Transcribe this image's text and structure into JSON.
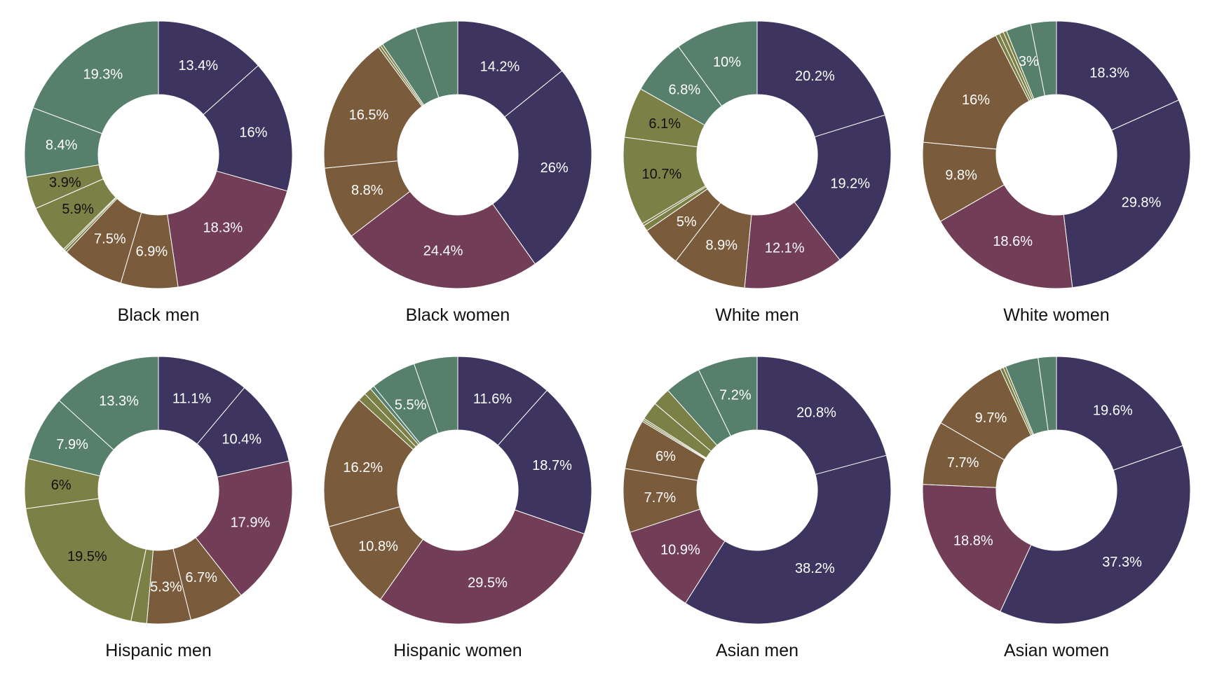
{
  "chart_data": {
    "type": "pie",
    "variant": "donut",
    "colors": {
      "purple": "#3d355f",
      "maroon": "#723d56",
      "brown": "#7a5b3c",
      "olive": "#7b8046",
      "teal": "#567f6c"
    },
    "label_colors": {
      "light": "#ffffff",
      "dark": "#111111"
    },
    "charts": [
      {
        "title": "Black men",
        "slices": [
          {
            "value": 13.4,
            "color": "purple",
            "label": "13.4%"
          },
          {
            "value": 16.0,
            "color": "purple",
            "label": "16%"
          },
          {
            "value": 18.3,
            "color": "maroon",
            "label": "18.3%"
          },
          {
            "value": 6.9,
            "color": "brown",
            "label": "6.9%"
          },
          {
            "value": 7.5,
            "color": "brown",
            "label": "7.5%"
          },
          {
            "value": 0.3,
            "color": "olive",
            "label": null
          },
          {
            "value": 0.2,
            "color": "olive",
            "label": null
          },
          {
            "value": 5.9,
            "color": "olive",
            "label": "5.9%"
          },
          {
            "value": 3.9,
            "color": "olive",
            "label": "3.9%"
          },
          {
            "value": 8.4,
            "color": "teal",
            "label": "8.4%"
          },
          {
            "value": 19.3,
            "color": "teal",
            "label": "19.3%"
          }
        ]
      },
      {
        "title": "Black women",
        "slices": [
          {
            "value": 14.2,
            "color": "purple",
            "label": "14.2%"
          },
          {
            "value": 26.0,
            "color": "purple",
            "label": "26%"
          },
          {
            "value": 24.4,
            "color": "maroon",
            "label": "24.4%"
          },
          {
            "value": 8.8,
            "color": "brown",
            "label": "8.8%"
          },
          {
            "value": 16.5,
            "color": "brown",
            "label": "16.5%"
          },
          {
            "value": 0.3,
            "color": "olive",
            "label": null
          },
          {
            "value": 0.3,
            "color": "olive",
            "label": null
          },
          {
            "value": 4.4,
            "color": "teal",
            "label": null
          },
          {
            "value": 5.1,
            "color": "teal",
            "label": null
          }
        ]
      },
      {
        "title": "White men",
        "slices": [
          {
            "value": 20.2,
            "color": "purple",
            "label": "20.2%"
          },
          {
            "value": 19.2,
            "color": "purple",
            "label": "19.2%"
          },
          {
            "value": 12.1,
            "color": "maroon",
            "label": "12.1%"
          },
          {
            "value": 8.9,
            "color": "brown",
            "label": "8.9%"
          },
          {
            "value": 5.0,
            "color": "brown",
            "label": "5%"
          },
          {
            "value": 0.7,
            "color": "olive",
            "label": null
          },
          {
            "value": 0.3,
            "color": "olive",
            "label": null
          },
          {
            "value": 10.7,
            "color": "olive",
            "label": "10.7%"
          },
          {
            "value": 6.1,
            "color": "olive",
            "label": "6.1%"
          },
          {
            "value": 6.8,
            "color": "teal",
            "label": "6.8%"
          },
          {
            "value": 10.0,
            "color": "teal",
            "label": "10%"
          }
        ]
      },
      {
        "title": "White women",
        "slices": [
          {
            "value": 18.3,
            "color": "purple",
            "label": "18.3%"
          },
          {
            "value": 29.8,
            "color": "purple",
            "label": "29.8%"
          },
          {
            "value": 18.6,
            "color": "maroon",
            "label": "18.6%"
          },
          {
            "value": 9.8,
            "color": "brown",
            "label": "9.8%"
          },
          {
            "value": 16.0,
            "color": "brown",
            "label": "16%"
          },
          {
            "value": 0.5,
            "color": "olive",
            "label": null
          },
          {
            "value": 0.5,
            "color": "olive",
            "label": null
          },
          {
            "value": 0.4,
            "color": "olive",
            "label": null
          },
          {
            "value": 3.0,
            "color": "teal",
            "label": "3%"
          },
          {
            "value": 3.1,
            "color": "teal",
            "label": null
          }
        ]
      },
      {
        "title": "Hispanic men",
        "slices": [
          {
            "value": 11.1,
            "color": "purple",
            "label": "11.1%"
          },
          {
            "value": 10.4,
            "color": "purple",
            "label": "10.4%"
          },
          {
            "value": 17.9,
            "color": "maroon",
            "label": "17.9%"
          },
          {
            "value": 6.7,
            "color": "brown",
            "label": "6.7%"
          },
          {
            "value": 5.3,
            "color": "brown",
            "label": "5.3%"
          },
          {
            "value": 1.9,
            "color": "olive",
            "label": null
          },
          {
            "value": 19.5,
            "color": "olive",
            "label": "19.5%"
          },
          {
            "value": 6.0,
            "color": "olive",
            "label": "6%"
          },
          {
            "value": 7.9,
            "color": "teal",
            "label": "7.9%"
          },
          {
            "value": 13.3,
            "color": "teal",
            "label": "13.3%"
          }
        ]
      },
      {
        "title": "Hispanic women",
        "slices": [
          {
            "value": 11.6,
            "color": "purple",
            "label": "11.6%"
          },
          {
            "value": 18.7,
            "color": "purple",
            "label": "18.7%"
          },
          {
            "value": 29.5,
            "color": "maroon",
            "label": "29.5%"
          },
          {
            "value": 10.8,
            "color": "brown",
            "label": "10.8%"
          },
          {
            "value": 16.2,
            "color": "brown",
            "label": "16.2%"
          },
          {
            "value": 1.0,
            "color": "olive",
            "label": null
          },
          {
            "value": 0.9,
            "color": "olive",
            "label": null
          },
          {
            "value": 0.5,
            "color": "teal",
            "label": null
          },
          {
            "value": 5.5,
            "color": "teal",
            "label": "5.5%"
          },
          {
            "value": 5.3,
            "color": "teal",
            "label": null
          }
        ]
      },
      {
        "title": "Asian men",
        "slices": [
          {
            "value": 20.8,
            "color": "purple",
            "label": "20.8%"
          },
          {
            "value": 38.2,
            "color": "purple",
            "label": "38.2%"
          },
          {
            "value": 10.9,
            "color": "maroon",
            "label": "10.9%"
          },
          {
            "value": 7.7,
            "color": "brown",
            "label": "7.7%"
          },
          {
            "value": 6.0,
            "color": "brown",
            "label": "6%"
          },
          {
            "value": 0.2,
            "color": "olive",
            "label": null
          },
          {
            "value": 0.2,
            "color": "olive",
            "label": null
          },
          {
            "value": 2.2,
            "color": "olive",
            "label": null
          },
          {
            "value": 2.2,
            "color": "olive",
            "label": null
          },
          {
            "value": 4.4,
            "color": "teal",
            "label": null
          },
          {
            "value": 7.2,
            "color": "teal",
            "label": "7.2%"
          }
        ]
      },
      {
        "title": "Asian women",
        "slices": [
          {
            "value": 19.6,
            "color": "purple",
            "label": "19.6%"
          },
          {
            "value": 37.3,
            "color": "purple",
            "label": "37.3%"
          },
          {
            "value": 18.8,
            "color": "maroon",
            "label": "18.8%"
          },
          {
            "value": 7.7,
            "color": "brown",
            "label": "7.7%"
          },
          {
            "value": 9.7,
            "color": "brown",
            "label": "9.7%"
          },
          {
            "value": 0.4,
            "color": "olive",
            "label": null
          },
          {
            "value": 0.3,
            "color": "olive",
            "label": null
          },
          {
            "value": 4.0,
            "color": "teal",
            "label": null
          },
          {
            "value": 2.2,
            "color": "teal",
            "label": null
          }
        ]
      }
    ]
  }
}
